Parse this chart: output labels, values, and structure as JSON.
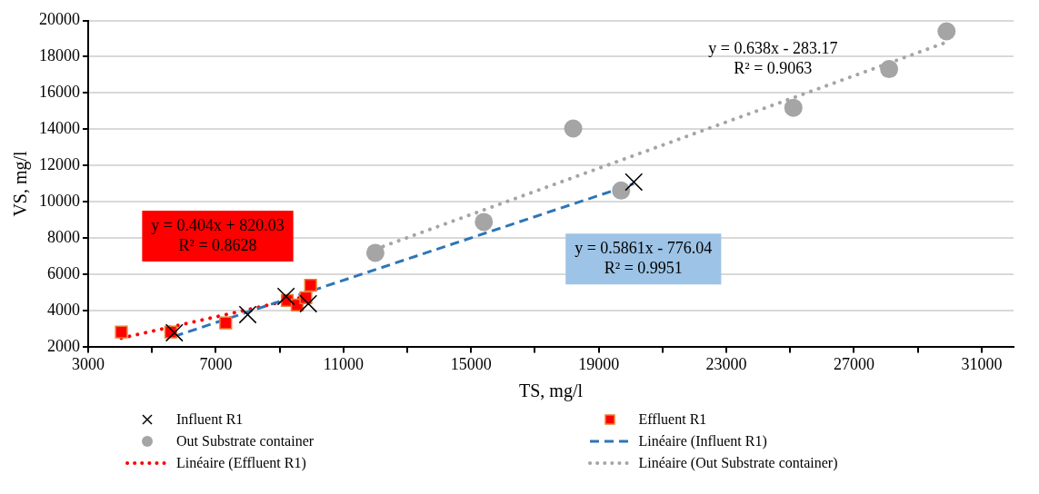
{
  "chart_data": {
    "type": "scatter",
    "xlabel": "TS, mg/l",
    "ylabel": "VS, mg/l",
    "xlim": [
      3000,
      32000
    ],
    "xticks": [
      3000,
      {
        "value": 5000,
        "label": null
      },
      7000,
      {
        "value": 9000,
        "label": null
      },
      11000,
      {
        "value": 13000,
        "label": null
      },
      15000,
      {
        "value": 17000,
        "label": null
      },
      19000,
      {
        "value": 21000,
        "label": null
      },
      23000,
      {
        "value": 25000,
        "label": null
      },
      27000,
      {
        "value": 29000,
        "label": null
      },
      31000
    ],
    "ylim": [
      2000,
      20000
    ],
    "yticks": [
      2000,
      4000,
      6000,
      8000,
      10000,
      12000,
      14000,
      16000,
      18000,
      20000
    ],
    "grid": "y",
    "legend": "bottom",
    "series": [
      {
        "name": "Influent R1",
        "type": "scatter",
        "marker": "cross",
        "color": "#000000",
        "x": [
          5700,
          8000,
          9200,
          9900,
          20100
        ],
        "values": [
          2800,
          3800,
          4800,
          4400,
          11100
        ]
      },
      {
        "name": "Effluent R1",
        "type": "scatter",
        "marker": "square",
        "color": "#ff0000",
        "x": [
          4040,
          5590,
          7310,
          9240,
          9550,
          9820,
          9970
        ],
        "values": [
          2840,
          2840,
          3340,
          4580,
          4330,
          4730,
          5420
        ]
      },
      {
        "name": "Out Substrate container",
        "type": "scatter",
        "marker": "circle",
        "color": "#a5a5a5",
        "x": [
          12000,
          15400,
          18200,
          19700,
          25100,
          28100,
          29900
        ],
        "values": [
          7200,
          8900,
          14050,
          10630,
          15190,
          17320,
          19400
        ]
      },
      {
        "name": "Linéaire (Influent R1)",
        "type": "line",
        "line_style": "dashed",
        "color": "#2e75b6",
        "x": [
          5700,
          20100
        ],
        "values": [
          2600,
          11000
        ]
      },
      {
        "name": "Linéaire (Effluent R1)",
        "type": "line",
        "line_style": "dotted",
        "color": "#ff0000",
        "x": [
          4040,
          9970
        ],
        "values": [
          2500,
          4850
        ]
      },
      {
        "name": "Linéaire (Out Substrate container)",
        "type": "line",
        "line_style": "dotted",
        "color": "#a5a5a5",
        "x": [
          12000,
          29900
        ],
        "values": [
          7400,
          18800
        ]
      }
    ],
    "annotations": [
      "y = 0.404x + 820.03\nR² = 0.8628",
      "y = 0.5861x - 776.04\nR² = 0.9951",
      "y = 0.638x - 283.17\nR² = 0.9063"
    ]
  }
}
